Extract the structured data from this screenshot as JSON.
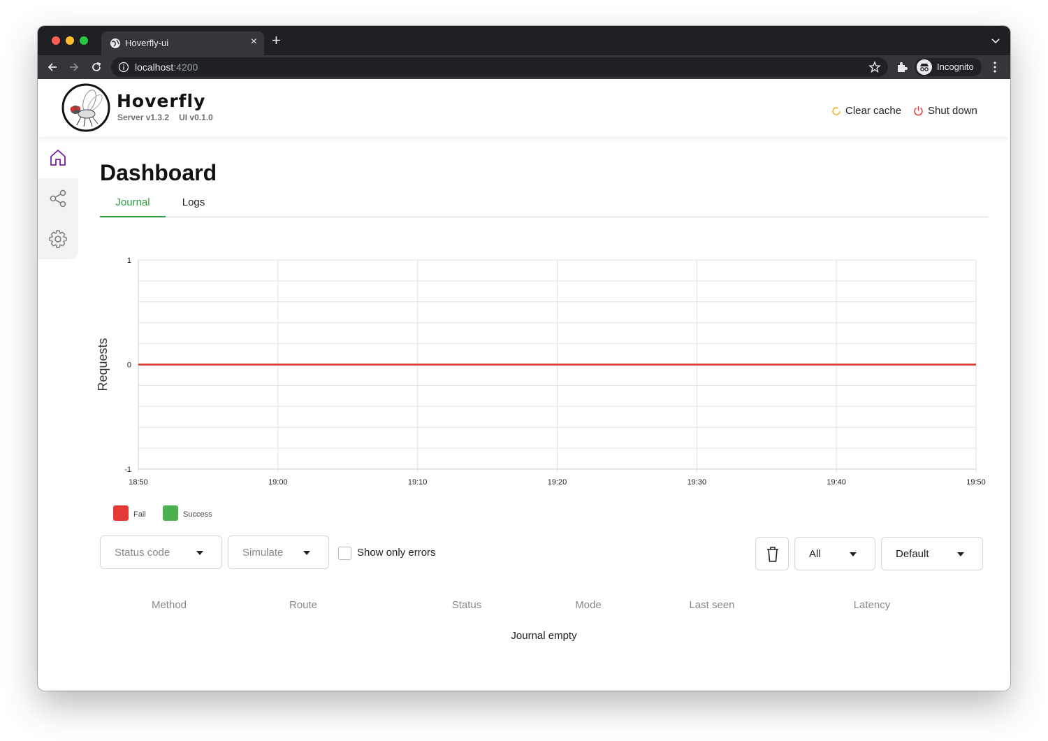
{
  "browser": {
    "tab_title": "Hoverfly-ui",
    "url_host": "localhost",
    "url_port": ":4200",
    "profile_label": "Incognito"
  },
  "app": {
    "brand": "Hoverfly",
    "server_version": "Server v1.3.2",
    "ui_version": "UI v0.1.0",
    "clear_cache_label": "Clear cache",
    "shut_down_label": "Shut down",
    "accent_color": "#2ea043",
    "brand_purple": "#7b1fa2"
  },
  "sidebar": {
    "items": [
      {
        "icon": "home-icon",
        "active": true
      },
      {
        "icon": "share-icon",
        "active": false
      },
      {
        "icon": "gear-icon",
        "active": false
      }
    ]
  },
  "page": {
    "title": "Dashboard",
    "tabs": [
      {
        "label": "Journal",
        "active": true
      },
      {
        "label": "Logs",
        "active": false
      }
    ]
  },
  "chart_data": {
    "type": "line",
    "ylabel": "Requests",
    "xlabel": "",
    "ylim": [
      -1,
      1
    ],
    "y_ticks": [
      "1",
      "0",
      "-1"
    ],
    "x_ticks": [
      "18:50",
      "19:00",
      "19:10",
      "19:20",
      "19:30",
      "19:40",
      "19:50"
    ],
    "grid": true,
    "legend_position": "bottom-left",
    "series": [
      {
        "name": "Fail",
        "color": "#e53935",
        "x": [
          "18:50",
          "19:50"
        ],
        "values": [
          0,
          0
        ]
      },
      {
        "name": "Success",
        "color": "#4caf50",
        "x": [
          "18:50",
          "19:50"
        ],
        "values": [
          0,
          0
        ]
      }
    ]
  },
  "filters": {
    "status_code_placeholder": "Status code",
    "mode_placeholder": "Simulate",
    "errors_only_label": "Show only errors",
    "errors_only_checked": false,
    "range_value": "All",
    "sort_value": "Default"
  },
  "journal": {
    "columns": [
      "Method",
      "Route",
      "Status",
      "Mode",
      "Last seen",
      "Latency"
    ],
    "empty_text": "Journal empty"
  }
}
